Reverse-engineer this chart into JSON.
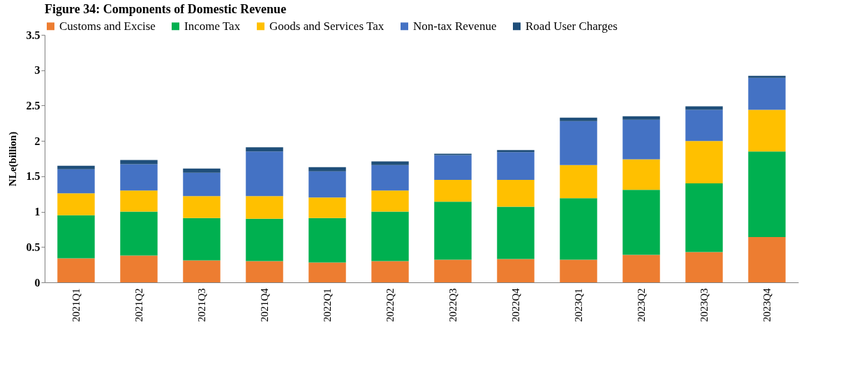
{
  "chart_data": {
    "type": "bar",
    "title": "Figure 34: Components of Domestic Revenue",
    "ylabel": "NLe(billion)",
    "stacked": true,
    "legend": "top",
    "grid": false,
    "categories": [
      "2021Q1",
      "2021Q2",
      "2021Q3",
      "2021Q4",
      "2022Q1",
      "2022Q2",
      "2022Q3",
      "2022Q4",
      "2023Q1",
      "2023Q2",
      "2023Q3",
      "2023Q4"
    ],
    "ylim": [
      0,
      3.5
    ],
    "yticks": [
      0,
      0.5,
      1,
      1.5,
      2,
      2.5,
      3,
      3.5
    ],
    "series": [
      {
        "name": "Customs and Excise",
        "color": "#ed7d31",
        "values": [
          0.34,
          0.38,
          0.31,
          0.3,
          0.28,
          0.3,
          0.32,
          0.33,
          0.32,
          0.39,
          0.43,
          0.64
        ]
      },
      {
        "name": "Income Tax",
        "color": "#00b050",
        "values": [
          0.61,
          0.62,
          0.6,
          0.6,
          0.63,
          0.7,
          0.82,
          0.74,
          0.87,
          0.92,
          0.97,
          1.21
        ]
      },
      {
        "name": "Goods and Services Tax",
        "color": "#ffc000",
        "values": [
          0.31,
          0.3,
          0.31,
          0.32,
          0.29,
          0.3,
          0.31,
          0.38,
          0.47,
          0.43,
          0.6,
          0.59
        ]
      },
      {
        "name": "Non-tax Revenue",
        "color": "#4472c4",
        "values": [
          0.34,
          0.37,
          0.33,
          0.63,
          0.37,
          0.36,
          0.35,
          0.39,
          0.62,
          0.56,
          0.44,
          0.45
        ]
      },
      {
        "name": "Road User Charges",
        "color": "#1f4e79",
        "values": [
          0.05,
          0.06,
          0.06,
          0.06,
          0.06,
          0.05,
          0.02,
          0.03,
          0.05,
          0.05,
          0.05,
          0.03
        ]
      }
    ]
  }
}
